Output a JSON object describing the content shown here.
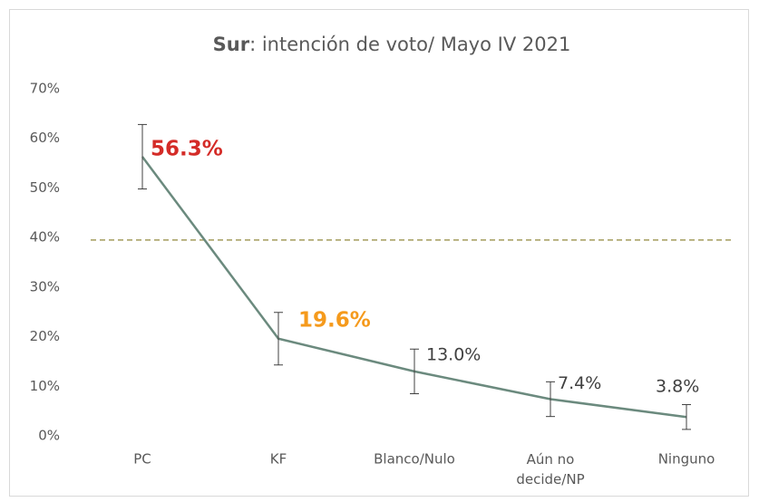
{
  "chart_data": {
    "type": "line",
    "title": [
      "Sur",
      ": intención de voto/ Mayo IV 2021"
    ],
    "categories": [
      "PC",
      "KF",
      "Blanco/Nulo",
      "Aún no decide/NP",
      "Ninguno"
    ],
    "series": [
      {
        "color": "#6b8a7e",
        "values": [
          56.3,
          19.6,
          13.0,
          7.4,
          3.8
        ],
        "value_labels": [
          "56.3%",
          "19.6%",
          "13.0%",
          "7.4%",
          "3.8%"
        ],
        "errors": [
          6.5,
          5.3,
          4.5,
          3.5,
          2.5
        ],
        "value_label_colors": [
          "#d42b27",
          "#f59a1c",
          "#404040",
          "#404040",
          "#404040"
        ],
        "value_label_bold": [
          true,
          true,
          false,
          false,
          false
        ]
      }
    ],
    "reference_line": {
      "value": 39.5,
      "color": "#a39c5c"
    },
    "ylim": [
      0,
      70
    ],
    "yticks": [
      {
        "value": 0,
        "label": "0%"
      },
      {
        "value": 10,
        "label": "10%"
      },
      {
        "value": 20,
        "label": "20%"
      },
      {
        "value": 30,
        "label": "30%"
      },
      {
        "value": 40,
        "label": "40%"
      },
      {
        "value": 50,
        "label": "50%"
      },
      {
        "value": 60,
        "label": "60%"
      },
      {
        "value": 70,
        "label": "70%"
      }
    ],
    "grid": false
  }
}
